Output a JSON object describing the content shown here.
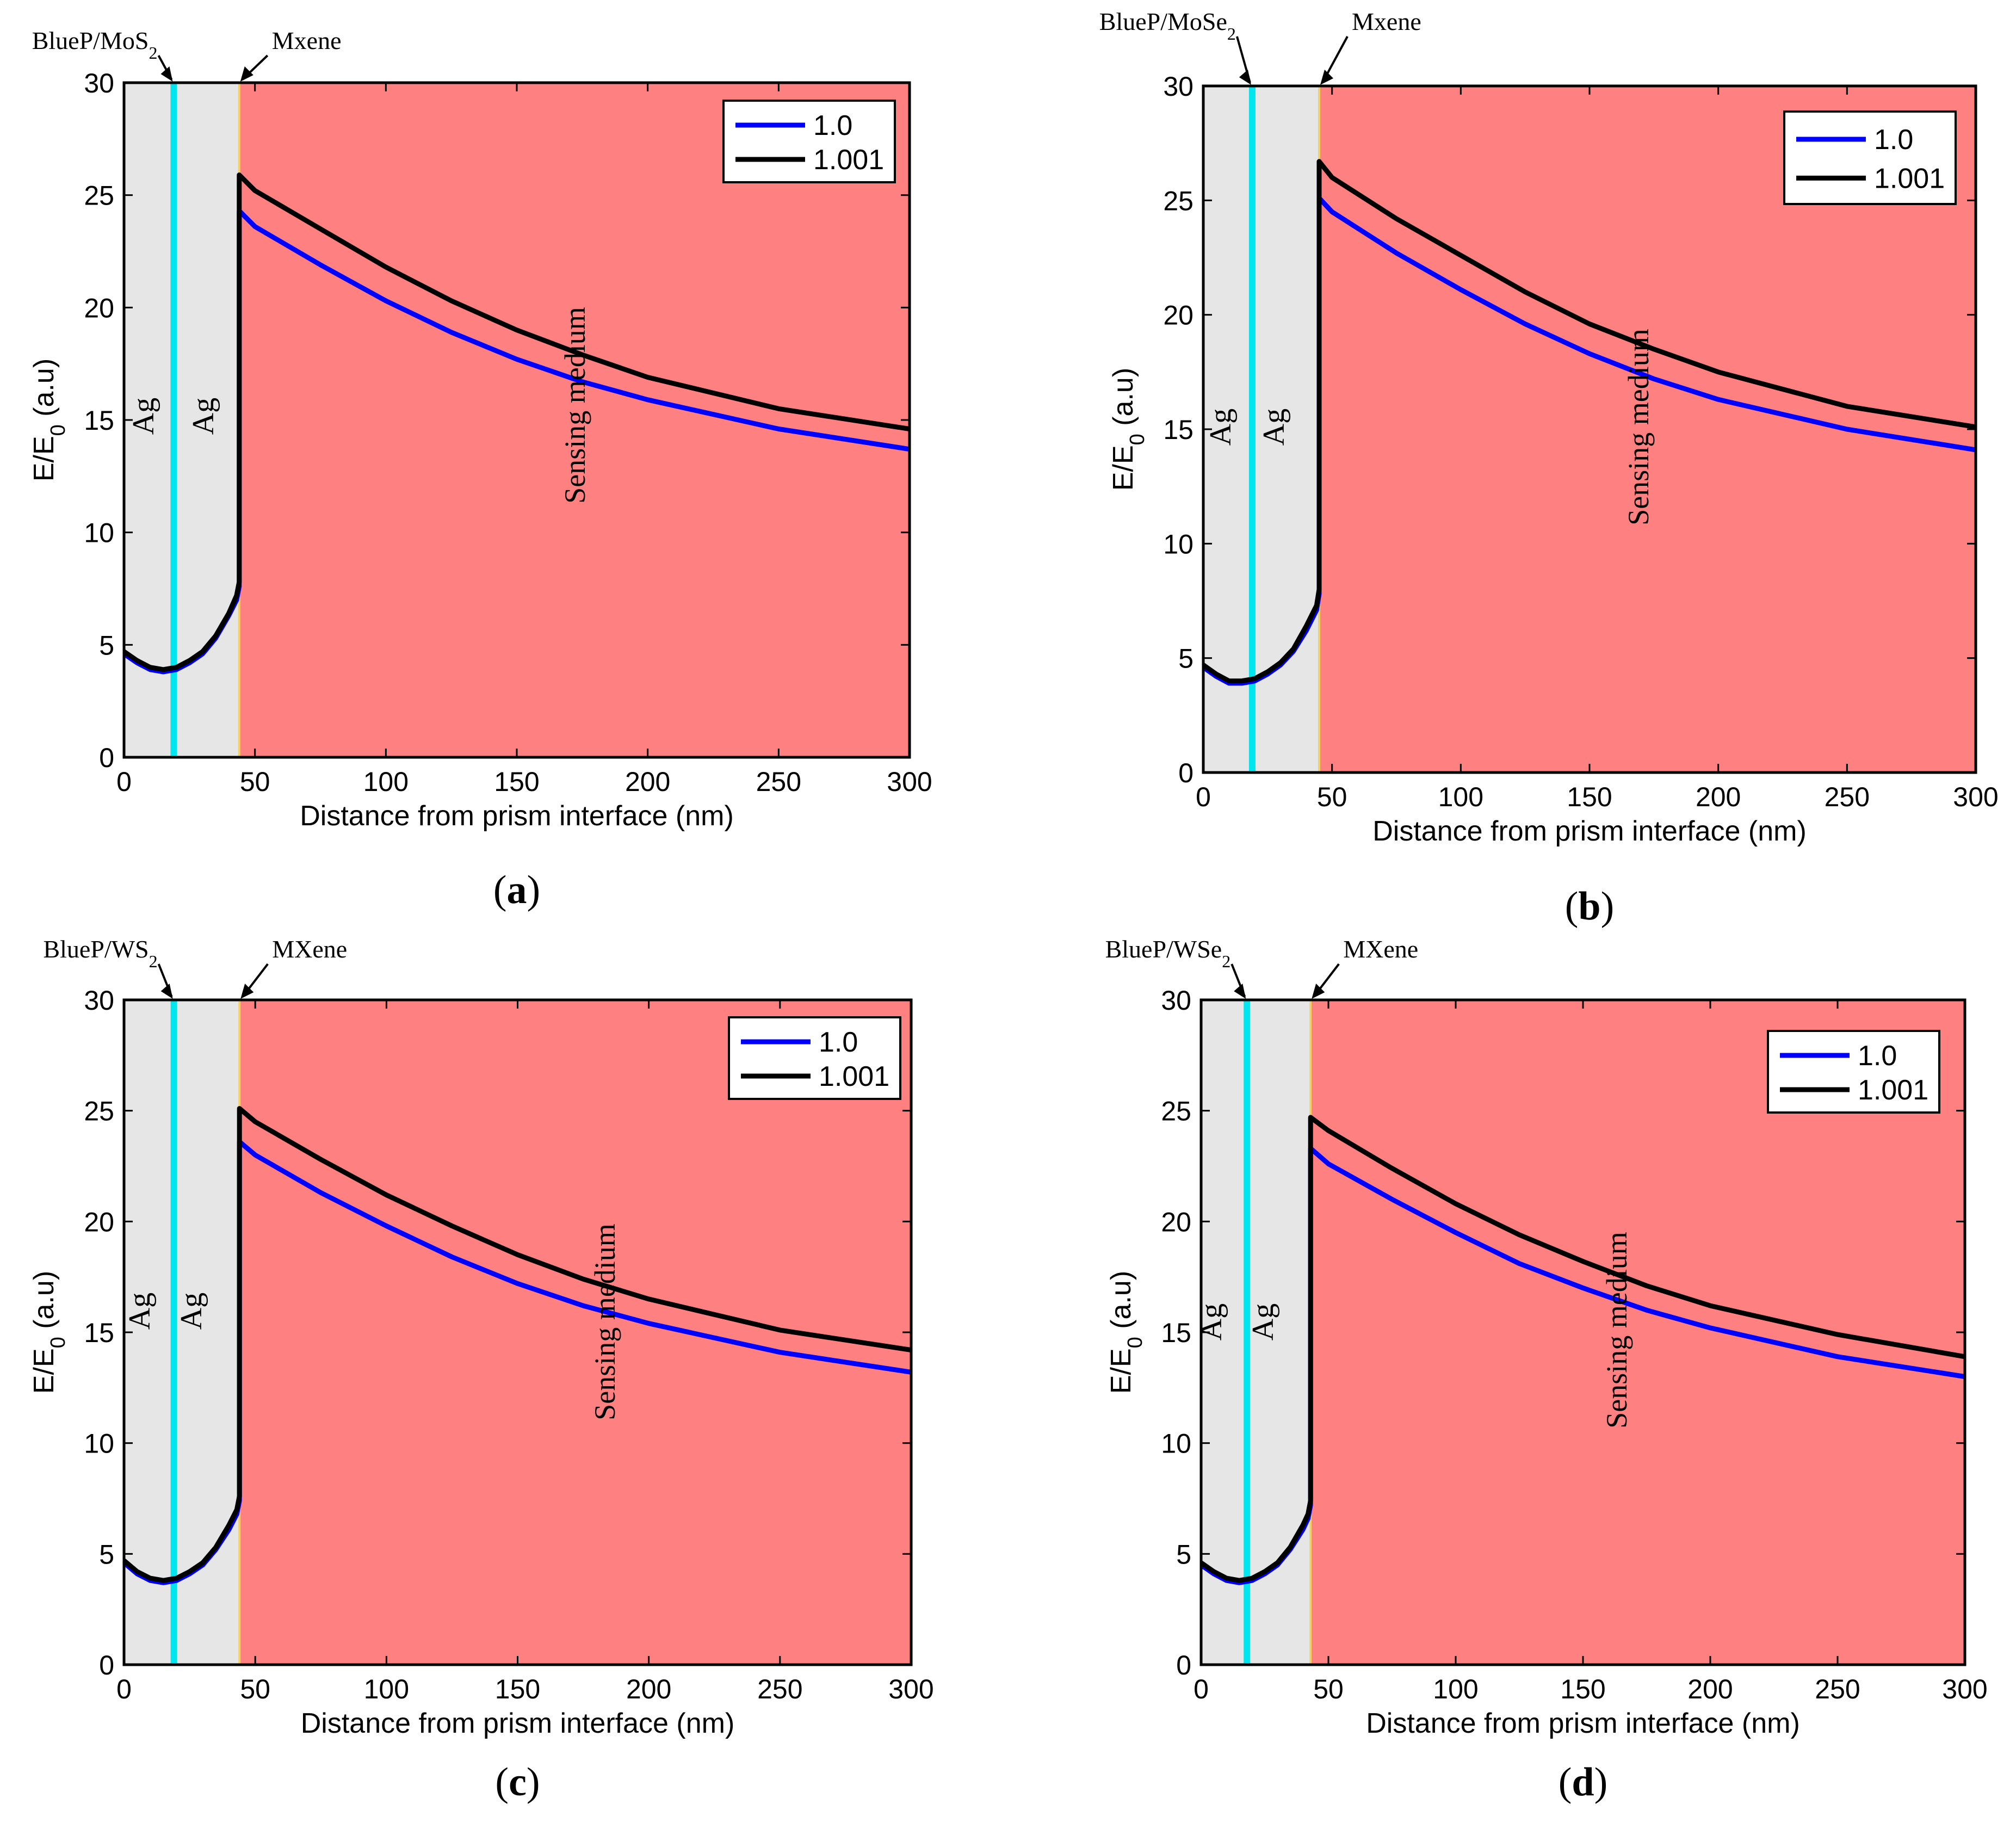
{
  "colors": {
    "metal_region": "#e6e6e6",
    "sensing_region": "#ff8080",
    "interlayer": "#00e5ee",
    "mxene_line": "#f5d060",
    "series_1": "#0000ff",
    "series_2": "#000000"
  },
  "chart_data": [
    {
      "panel": "(a)",
      "caption_label": "a",
      "type": "line",
      "xlabel": "Distance from prism interface (nm)",
      "ylabel_main": "E/E",
      "ylabel_sub": "0",
      "ylabel_tail": " (a.u)",
      "xlim": [
        0,
        300
      ],
      "ylim": [
        0,
        30
      ],
      "xticks": [
        0,
        50,
        100,
        150,
        200,
        250,
        300
      ],
      "yticks": [
        0,
        5,
        10,
        15,
        20,
        25,
        30
      ],
      "grid": false,
      "legend_position": "top-right",
      "layers": {
        "interlayer_x": 19,
        "mxene_x": 44,
        "interlayer_label_main": "BlueP/MoS",
        "interlayer_label_sub": "2",
        "mxene_label": "Mxene",
        "metal1_label": "Ag",
        "metal2_label": "Ag",
        "sensing_label": "Sensing medium"
      },
      "series": [
        {
          "name": "1.0",
          "x": [
            0,
            5,
            10,
            15,
            20,
            25,
            30,
            35,
            40,
            43,
            44,
            44,
            50,
            75,
            100,
            125,
            150,
            175,
            200,
            250,
            300
          ],
          "y": [
            4.6,
            4.2,
            3.9,
            3.8,
            3.9,
            4.2,
            4.6,
            5.3,
            6.3,
            7.0,
            7.6,
            24.3,
            23.6,
            21.9,
            20.3,
            18.9,
            17.7,
            16.7,
            15.9,
            14.6,
            13.7
          ]
        },
        {
          "name": "1.001",
          "x": [
            0,
            5,
            10,
            15,
            20,
            25,
            30,
            35,
            40,
            43,
            44,
            44,
            50,
            75,
            100,
            125,
            150,
            175,
            200,
            250,
            300
          ],
          "y": [
            4.7,
            4.3,
            4.0,
            3.9,
            4.0,
            4.3,
            4.7,
            5.4,
            6.4,
            7.2,
            7.8,
            25.9,
            25.2,
            23.5,
            21.8,
            20.3,
            19.0,
            17.9,
            16.9,
            15.5,
            14.6
          ]
        }
      ]
    },
    {
      "panel": "(b)",
      "caption_label": "b",
      "type": "line",
      "xlabel": "Distance from prism interface (nm)",
      "ylabel_main": "E/E",
      "ylabel_sub": "0",
      "ylabel_tail": " (a.u)",
      "xlim": [
        0,
        300
      ],
      "ylim": [
        0,
        30
      ],
      "xticks": [
        0,
        50,
        100,
        150,
        200,
        250,
        300
      ],
      "yticks": [
        0,
        5,
        10,
        15,
        20,
        25,
        30
      ],
      "grid": false,
      "legend_position": "top-right",
      "layers": {
        "interlayer_x": 19,
        "mxene_x": 45,
        "interlayer_label_main": "BlueP/MoSe",
        "interlayer_label_sub": "2",
        "mxene_label": "Mxene",
        "metal1_label": "Ag",
        "metal2_label": "Ag",
        "sensing_label": "Sensing medium"
      },
      "series": [
        {
          "name": "1.0",
          "x": [
            0,
            5,
            10,
            15,
            20,
            25,
            30,
            35,
            40,
            44,
            45,
            45,
            50,
            75,
            100,
            125,
            150,
            175,
            200,
            250,
            300
          ],
          "y": [
            4.6,
            4.2,
            3.9,
            3.9,
            4.0,
            4.3,
            4.7,
            5.3,
            6.2,
            7.1,
            7.8,
            25.1,
            24.5,
            22.7,
            21.1,
            19.6,
            18.3,
            17.2,
            16.3,
            15.0,
            14.1
          ]
        },
        {
          "name": "1.001",
          "x": [
            0,
            5,
            10,
            15,
            20,
            25,
            30,
            35,
            40,
            44,
            45,
            45,
            50,
            75,
            100,
            125,
            150,
            175,
            200,
            250,
            300
          ],
          "y": [
            4.7,
            4.3,
            4.0,
            4.0,
            4.1,
            4.4,
            4.8,
            5.4,
            6.4,
            7.3,
            8.0,
            26.7,
            26.0,
            24.2,
            22.6,
            21.0,
            19.6,
            18.5,
            17.5,
            16.0,
            15.1
          ]
        }
      ]
    },
    {
      "panel": "(c)",
      "caption_label": "c",
      "type": "line",
      "xlabel": "Distance from prism interface (nm)",
      "ylabel_main": "E/E",
      "ylabel_sub": "0",
      "ylabel_tail": " (a.u)",
      "xlim": [
        0,
        300
      ],
      "ylim": [
        0,
        30
      ],
      "xticks": [
        0,
        50,
        100,
        150,
        200,
        250,
        300
      ],
      "yticks": [
        0,
        5,
        10,
        15,
        20,
        25,
        30
      ],
      "grid": false,
      "legend_position": "top-right",
      "layers": {
        "interlayer_x": 19,
        "mxene_x": 44,
        "interlayer_label_main": "BlueP/WS",
        "interlayer_label_sub": "2",
        "mxene_label": "MXene",
        "metal1_label": "Ag",
        "metal2_label": "Ag",
        "sensing_label": "Sensing medium"
      },
      "series": [
        {
          "name": "1.0",
          "x": [
            0,
            5,
            10,
            15,
            20,
            25,
            30,
            35,
            40,
            43,
            44,
            44,
            50,
            75,
            100,
            125,
            150,
            175,
            200,
            250,
            300
          ],
          "y": [
            4.6,
            4.1,
            3.8,
            3.7,
            3.8,
            4.1,
            4.5,
            5.2,
            6.1,
            6.8,
            7.4,
            23.6,
            23.0,
            21.3,
            19.8,
            18.4,
            17.2,
            16.2,
            15.4,
            14.1,
            13.2
          ]
        },
        {
          "name": "1.001",
          "x": [
            0,
            5,
            10,
            15,
            20,
            25,
            30,
            35,
            40,
            43,
            44,
            44,
            50,
            75,
            100,
            125,
            150,
            175,
            200,
            250,
            300
          ],
          "y": [
            4.7,
            4.2,
            3.9,
            3.8,
            3.9,
            4.2,
            4.6,
            5.3,
            6.3,
            7.0,
            7.6,
            25.1,
            24.5,
            22.8,
            21.2,
            19.8,
            18.5,
            17.4,
            16.5,
            15.1,
            14.2
          ]
        }
      ]
    },
    {
      "panel": "(d)",
      "caption_label": "d",
      "type": "line",
      "xlabel": "Distance from prism interface (nm)",
      "ylabel_main": "E/E",
      "ylabel_sub": "0",
      "ylabel_tail": " (a.u)",
      "xlim": [
        0,
        300
      ],
      "ylim": [
        0,
        30
      ],
      "xticks": [
        0,
        50,
        100,
        150,
        200,
        250,
        300
      ],
      "yticks": [
        0,
        5,
        10,
        15,
        20,
        25,
        30
      ],
      "grid": false,
      "legend_position": "top-right",
      "layers": {
        "interlayer_x": 18,
        "mxene_x": 43,
        "interlayer_label_main": "BlueP/WSe",
        "interlayer_label_sub": "2",
        "mxene_label": "MXene",
        "metal1_label": "Ag",
        "metal2_label": "Ag",
        "sensing_label": "Sensing medium"
      },
      "series": [
        {
          "name": "1.0",
          "x": [
            0,
            5,
            10,
            15,
            20,
            25,
            30,
            35,
            40,
            42,
            43,
            43,
            50,
            75,
            100,
            125,
            150,
            175,
            200,
            250,
            300
          ],
          "y": [
            4.5,
            4.1,
            3.8,
            3.7,
            3.8,
            4.1,
            4.5,
            5.2,
            6.1,
            6.6,
            7.2,
            23.3,
            22.6,
            21.0,
            19.5,
            18.1,
            17.0,
            16.0,
            15.2,
            13.9,
            13.0
          ]
        },
        {
          "name": "1.001",
          "x": [
            0,
            5,
            10,
            15,
            20,
            25,
            30,
            35,
            40,
            42,
            43,
            43,
            50,
            75,
            100,
            125,
            150,
            175,
            200,
            250,
            300
          ],
          "y": [
            4.6,
            4.2,
            3.9,
            3.8,
            3.9,
            4.2,
            4.6,
            5.3,
            6.3,
            6.8,
            7.4,
            24.7,
            24.1,
            22.4,
            20.8,
            19.4,
            18.2,
            17.1,
            16.2,
            14.9,
            13.9
          ]
        }
      ]
    }
  ]
}
